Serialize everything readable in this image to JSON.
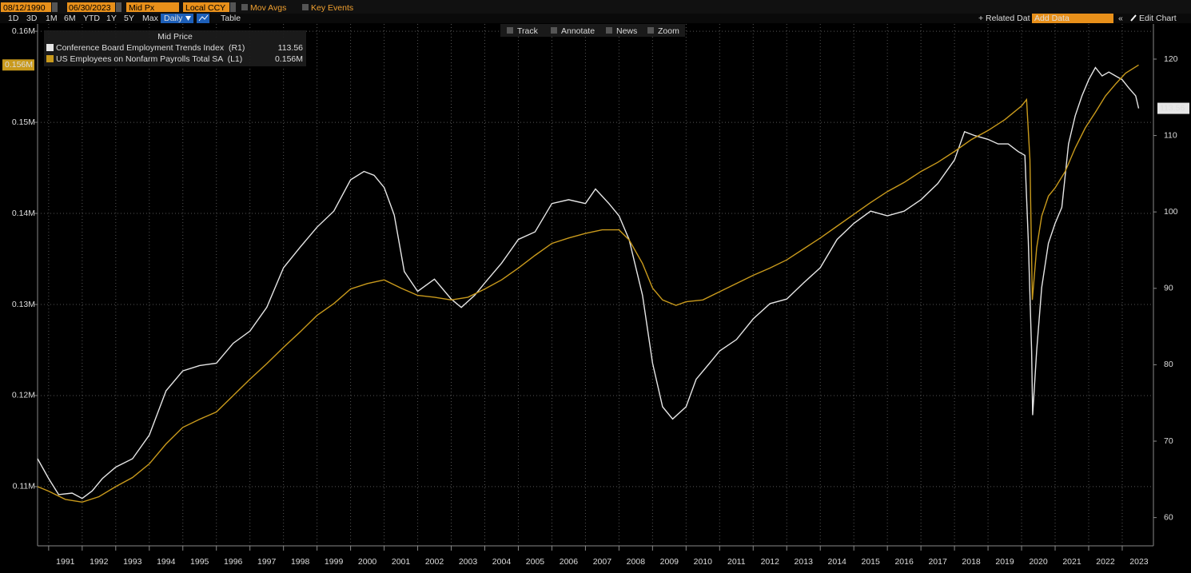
{
  "toolbar": {
    "start_date": "08/12/1990",
    "end_date": "06/30/2023",
    "price_field": "Mid Px",
    "currency": "Local CCY",
    "mov_avgs": "Mov Avgs",
    "key_events": "Key Events",
    "periods": [
      "1D",
      "3D",
      "1M",
      "6M",
      "YTD",
      "1Y",
      "5Y",
      "Max"
    ],
    "frequency": "Daily",
    "table": "Table",
    "related": "+ Related Dat",
    "add_data": "Add Data",
    "edit_chart": "Edit Chart",
    "chart_tools": [
      "Track",
      "Annotate",
      "News",
      "Zoom"
    ]
  },
  "chart_data": {
    "type": "line",
    "legend_title": "Mid Price",
    "xlim": [
      1990.67,
      2023.93
    ],
    "xticks": [
      1991,
      1992,
      1993,
      1994,
      1995,
      1996,
      1997,
      1998,
      1999,
      2000,
      2001,
      2002,
      2003,
      2004,
      2005,
      2006,
      2007,
      2008,
      2009,
      2010,
      2011,
      2012,
      2013,
      2014,
      2015,
      2016,
      2017,
      2018,
      2019,
      2020,
      2021,
      2022,
      2023
    ],
    "ylim": [
      0.1035,
      0.1608
    ],
    "yticks": [
      {
        "value": 0.11,
        "label": "0.11M"
      },
      {
        "value": 0.12,
        "label": "0.12M"
      },
      {
        "value": 0.13,
        "label": "0.13M"
      },
      {
        "value": 0.14,
        "label": "0.14M"
      },
      {
        "value": 0.15,
        "label": "0.15M"
      },
      {
        "value": 0.16,
        "label": "0.16M"
      }
    ],
    "y2lim": [
      56.3,
      124.6
    ],
    "y2ticks": [
      60,
      70,
      80,
      90,
      100,
      110,
      120
    ],
    "grid": true,
    "series": [
      {
        "name": "Conference Board Employment Trends Index  (R1)",
        "color": "#e6e6e6",
        "axis": "y2",
        "last_label": "113.56",
        "x": [
          1990.67,
          1991.0,
          1991.3,
          1991.7,
          1992.0,
          1992.3,
          1992.6,
          1993.0,
          1993.5,
          1994.0,
          1994.5,
          1995.0,
          1995.5,
          1996.0,
          1996.5,
          1997.0,
          1997.5,
          1998.0,
          1998.5,
          1999.0,
          1999.5,
          2000.0,
          2000.4,
          2000.7,
          2001.0,
          2001.3,
          2001.6,
          2002.0,
          2002.5,
          2003.0,
          2003.3,
          2003.7,
          2004.0,
          2004.5,
          2005.0,
          2005.5,
          2006.0,
          2006.5,
          2007.0,
          2007.3,
          2007.7,
          2008.0,
          2008.3,
          2008.7,
          2009.0,
          2009.3,
          2009.6,
          2010.0,
          2010.3,
          2010.7,
          2011.0,
          2011.5,
          2012.0,
          2012.5,
          2013.0,
          2013.5,
          2014.0,
          2014.5,
          2015.0,
          2015.5,
          2016.0,
          2016.5,
          2017.0,
          2017.5,
          2018.0,
          2018.3,
          2018.6,
          2019.0,
          2019.3,
          2019.6,
          2019.9,
          2020.1,
          2020.2,
          2020.3,
          2020.33,
          2020.45,
          2020.6,
          2020.8,
          2021.0,
          2021.2,
          2021.4,
          2021.6,
          2021.8,
          2022.0,
          2022.2,
          2022.4,
          2022.6,
          2022.8,
          2023.0,
          2023.2,
          2023.4,
          2023.49
        ],
        "values": [
          67.7,
          65.1,
          63.0,
          63.2,
          62.5,
          63.5,
          65.1,
          66.6,
          67.7,
          70.8,
          76.6,
          79.2,
          79.9,
          80.2,
          82.8,
          84.4,
          87.5,
          92.7,
          95.4,
          98.0,
          100.1,
          104.2,
          105.3,
          104.8,
          103.2,
          99.6,
          92.2,
          89.6,
          91.2,
          88.6,
          87.5,
          89.1,
          90.7,
          93.3,
          96.4,
          97.4,
          101.1,
          101.6,
          101.1,
          103.0,
          101.1,
          99.5,
          96.4,
          89.1,
          80.2,
          74.5,
          72.9,
          74.5,
          78.1,
          80.2,
          81.8,
          83.3,
          86.0,
          88.0,
          88.6,
          90.7,
          92.7,
          96.4,
          98.5,
          100.1,
          99.5,
          100.1,
          101.6,
          103.7,
          106.8,
          110.5,
          110.0,
          109.5,
          108.9,
          108.9,
          107.9,
          107.4,
          96.4,
          81.8,
          73.4,
          81.8,
          90.1,
          95.9,
          98.5,
          100.6,
          108.9,
          112.6,
          115.2,
          117.3,
          118.9,
          117.8,
          118.3,
          117.8,
          117.3,
          116.2,
          115.2,
          113.56
        ]
      },
      {
        "name": "US Employees on Nonfarm Payrolls Total SA  (L1)",
        "color": "#c99a1c",
        "axis": "y",
        "last_label": "0.156M",
        "x": [
          1990.67,
          1991.0,
          1991.5,
          1992.0,
          1992.5,
          1993.0,
          1993.5,
          1994.0,
          1994.5,
          1995.0,
          1995.5,
          1996.0,
          1996.5,
          1997.0,
          1997.5,
          1998.0,
          1998.5,
          1999.0,
          1999.5,
          2000.0,
          2000.5,
          2001.0,
          2001.5,
          2002.0,
          2002.5,
          2003.0,
          2003.5,
          2004.0,
          2004.5,
          2005.0,
          2005.5,
          2006.0,
          2006.5,
          2007.0,
          2007.5,
          2008.0,
          2008.3,
          2008.7,
          2009.0,
          2009.3,
          2009.7,
          2010.0,
          2010.5,
          2011.0,
          2011.5,
          2012.0,
          2012.5,
          2013.0,
          2013.5,
          2014.0,
          2014.5,
          2015.0,
          2015.5,
          2016.0,
          2016.5,
          2017.0,
          2017.5,
          2018.0,
          2018.5,
          2019.0,
          2019.5,
          2020.0,
          2020.15,
          2020.25,
          2020.32,
          2020.45,
          2020.6,
          2020.8,
          2021.0,
          2021.3,
          2021.6,
          2021.9,
          2022.2,
          2022.5,
          2022.8,
          2023.1,
          2023.49
        ],
        "values": [
          0.11,
          0.1095,
          0.1086,
          0.1083,
          0.1089,
          0.11,
          0.111,
          0.1125,
          0.1147,
          0.1165,
          0.1174,
          0.1182,
          0.12,
          0.1218,
          0.1235,
          0.1253,
          0.127,
          0.1288,
          0.1301,
          0.1317,
          0.1323,
          0.1327,
          0.1318,
          0.131,
          0.1308,
          0.1305,
          0.1308,
          0.1317,
          0.1327,
          0.134,
          0.1354,
          0.1367,
          0.1373,
          0.1378,
          0.1382,
          0.1382,
          0.1371,
          0.1345,
          0.1318,
          0.1305,
          0.1299,
          0.1303,
          0.1305,
          0.1314,
          0.1323,
          0.1332,
          0.134,
          0.1349,
          0.1361,
          0.1373,
          0.1386,
          0.1399,
          0.1412,
          0.1424,
          0.1434,
          0.1446,
          0.1456,
          0.1468,
          0.1481,
          0.1491,
          0.1503,
          0.1518,
          0.1525,
          0.1459,
          0.1305,
          0.1362,
          0.1397,
          0.1419,
          0.1428,
          0.1446,
          0.1472,
          0.1494,
          0.1511,
          0.1529,
          0.1542,
          0.1554,
          0.1563
        ]
      }
    ]
  }
}
